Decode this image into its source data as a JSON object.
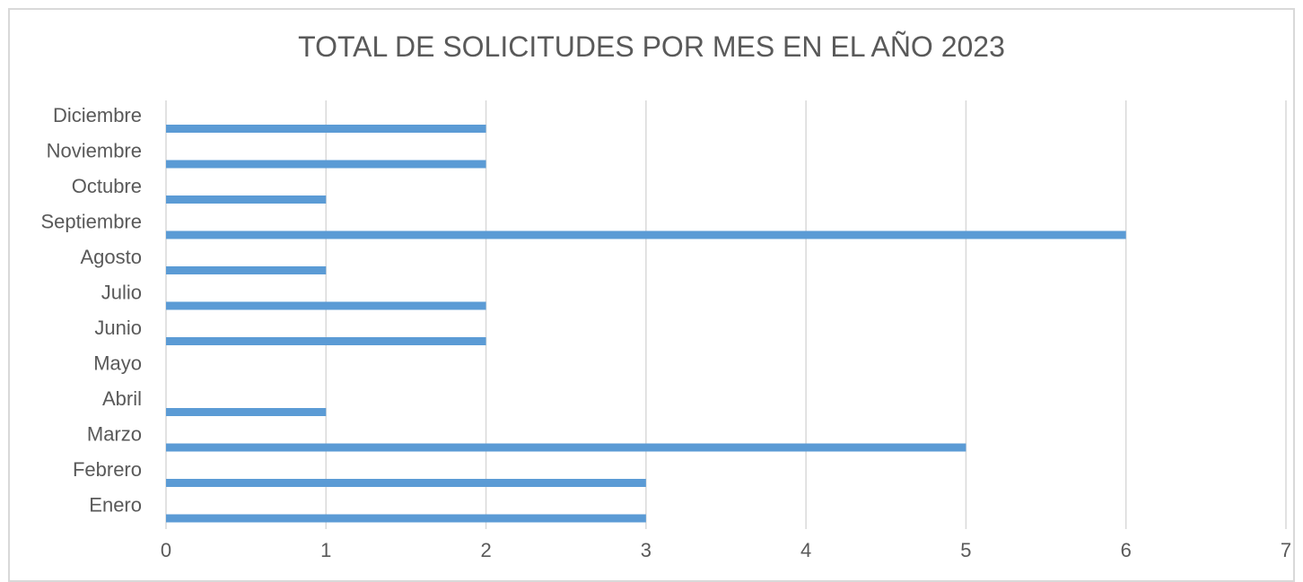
{
  "chart_data": {
    "type": "bar",
    "orientation": "horizontal",
    "title": "TOTAL DE SOLICITUDES POR MES EN EL AÑO 2023",
    "categories": [
      "Enero",
      "Febrero",
      "Marzo",
      "Abril",
      "Mayo",
      "Junio",
      "Julio",
      "Agosto",
      "Septiembre",
      "Octubre",
      "Noviembre",
      "Diciembre"
    ],
    "values": [
      3,
      3,
      5,
      1,
      0,
      2,
      2,
      1,
      6,
      1,
      2,
      2
    ],
    "xlim": [
      0,
      7
    ],
    "xticks": [
      "0",
      "1",
      "2",
      "3",
      "4",
      "5",
      "6",
      "7"
    ],
    "xlabel": "",
    "ylabel": "",
    "grid": "vertical",
    "legend": "none",
    "colors": {
      "bar": "#5b9bd5",
      "grid": "#d9d9d9",
      "text": "#595959"
    }
  }
}
